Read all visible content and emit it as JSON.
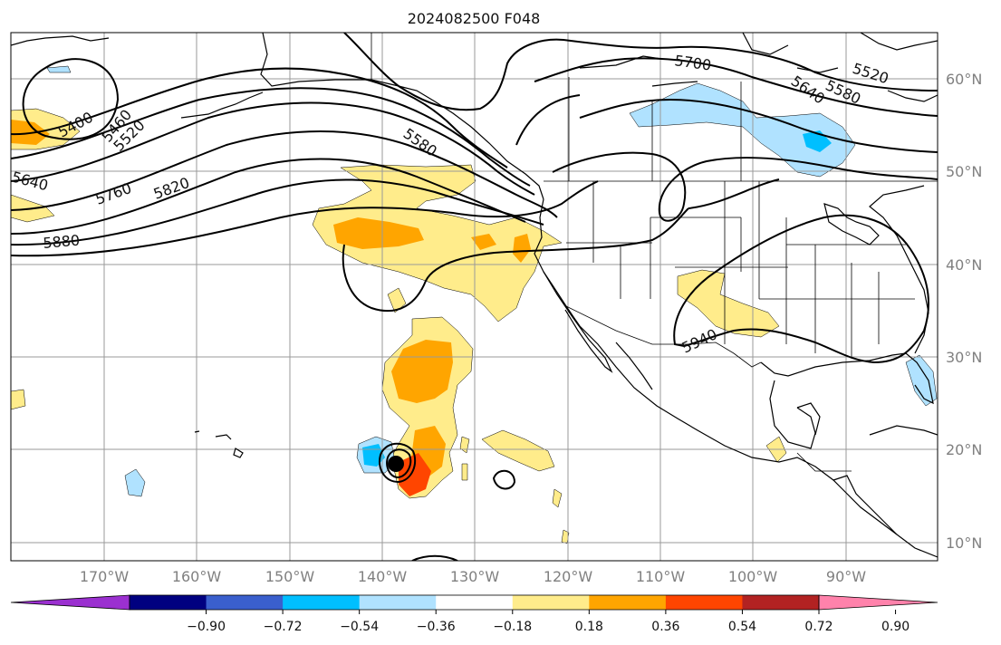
{
  "title": "2024082500 F048",
  "latitude_labels": [
    "60°N",
    "50°N",
    "40°N",
    "30°N",
    "20°N",
    "10°N"
  ],
  "longitude_labels": [
    "170°W",
    "160°W",
    "150°W",
    "140°W",
    "130°W",
    "120°W",
    "110°W",
    "100°W",
    "90°W"
  ],
  "height_contours": [
    "5400",
    "5460",
    "5520",
    "5640",
    "5760",
    "5820",
    "5880",
    "5580",
    "5700",
    "5520",
    "5580",
    "5640",
    "5940"
  ],
  "colorbar": {
    "tick_labels": [
      "−0.90",
      "−0.72",
      "−0.54",
      "−0.36",
      "−0.18",
      "0.18",
      "0.36",
      "0.54",
      "0.72",
      "0.90"
    ],
    "colors": [
      "#9b30d0",
      "#000080",
      "#3a5fcd",
      "#00bfff",
      "#b0e2ff",
      "#ffffff",
      "#ffec8b",
      "#ffa500",
      "#ff4500",
      "#b22222",
      "#ff82ab"
    ],
    "extend": "both"
  },
  "colors": {
    "contour": "#000000",
    "grid": "#9a9a9a",
    "coastline": "#000000"
  }
}
